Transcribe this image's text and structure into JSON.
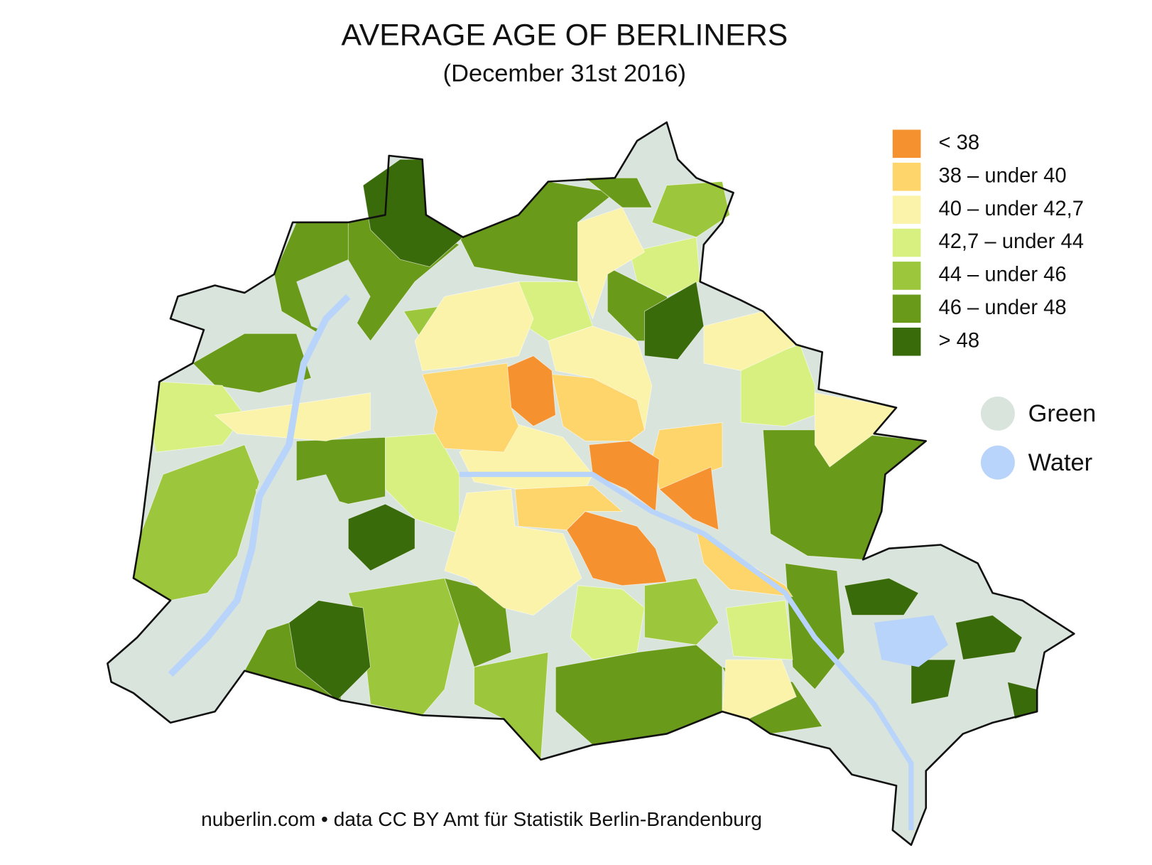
{
  "title": "AVERAGE AGE OF BERLINERS",
  "subtitle": "(December 31st 2016)",
  "legend": {
    "classes": [
      {
        "label": "< 38",
        "color": "#f5922f"
      },
      {
        "label": "38 – under 40",
        "color": "#fdd56b"
      },
      {
        "label": "40 – under 42,7",
        "color": "#fbf3a9"
      },
      {
        "label": "42,7 – under 44",
        "color": "#d7f080"
      },
      {
        "label": "44 – under 46",
        "color": "#9cc63b"
      },
      {
        "label": "46 – under 48",
        "color": "#6a9a1a"
      },
      {
        "label": "> 48",
        "color": "#3a6b0a"
      }
    ],
    "other": [
      {
        "label": "Green",
        "color": "#d9e4dd"
      },
      {
        "label": "Water",
        "color": "#b9d4fa"
      }
    ]
  },
  "footer": "nuberlin.com • data CC BY Amt für Statistik Berlin-Brandenburg"
}
